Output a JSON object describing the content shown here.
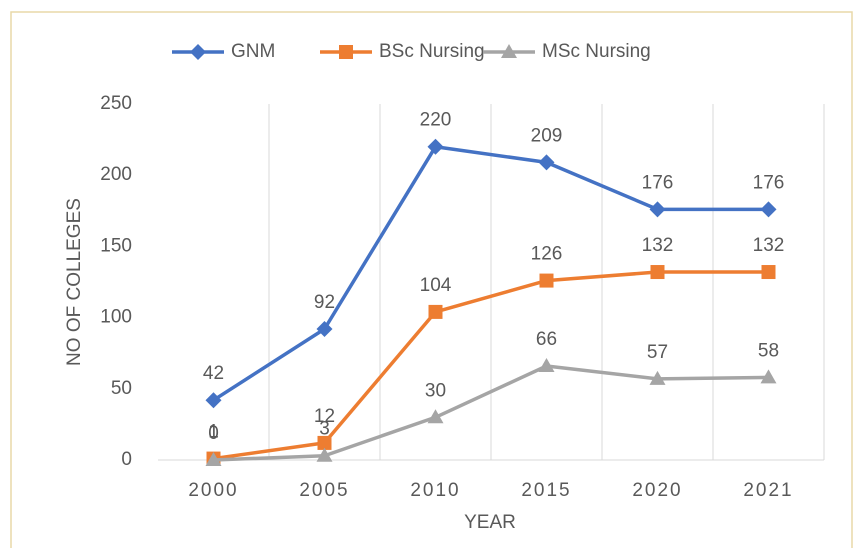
{
  "chart_data": {
    "type": "line",
    "x_label": "YEAR",
    "y_label": "NO OF COLLEGES",
    "categories": [
      "2000",
      "2005",
      "2010",
      "2015",
      "2020",
      "2021"
    ],
    "series": [
      {
        "name": "GNM",
        "color": "#4472c4",
        "marker": "diamond",
        "values": [
          42,
          92,
          220,
          209,
          176,
          176
        ]
      },
      {
        "name": "BSc Nursing",
        "color": "#ed7d31",
        "marker": "square",
        "values": [
          1,
          12,
          104,
          126,
          132,
          132
        ]
      },
      {
        "name": "MSc Nursing",
        "color": "#a5a5a5",
        "marker": "triangle",
        "values": [
          0,
          3,
          30,
          66,
          57,
          58
        ]
      }
    ],
    "ylim": [
      0,
      250
    ],
    "yticks": [
      0,
      50,
      100,
      150,
      200,
      250
    ],
    "grid": "x",
    "legend": "top"
  }
}
